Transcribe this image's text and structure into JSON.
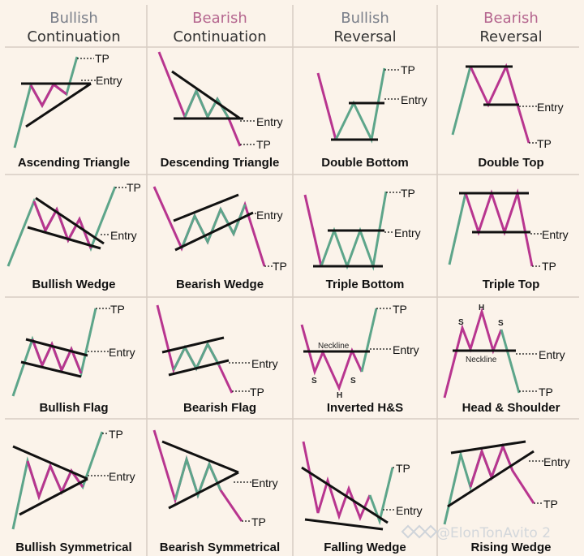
{
  "headers": [
    {
      "line1": "Bullish",
      "line2": "Continuation",
      "color": "#7a7f8a"
    },
    {
      "line1": "Bearish",
      "line2": "Continuation",
      "color": "#b5668f"
    },
    {
      "line1": "Bullish",
      "line2": "Reversal",
      "color": "#7a7f8a"
    },
    {
      "line1": "Bearish",
      "line2": "Reversal",
      "color": "#b5668f"
    }
  ],
  "labels": {
    "tp": "TP",
    "entry": "Entry",
    "neckline": "Neckline",
    "s": "S",
    "h": "H"
  },
  "colors": {
    "green": "#5da58a",
    "pink": "#b8358f",
    "black": "#111111",
    "grid": "#d8cdc3",
    "bg": "#fbf3ea"
  },
  "patterns": [
    {
      "name": "Ascending Triangle"
    },
    {
      "name": "Descending Triangle"
    },
    {
      "name": "Double Bottom"
    },
    {
      "name": "Double Top"
    },
    {
      "name": "Bullish Wedge"
    },
    {
      "name": "Bearish Wedge"
    },
    {
      "name": "Triple Bottom"
    },
    {
      "name": "Triple Top"
    },
    {
      "name": "Bullish Flag"
    },
    {
      "name": "Bearish Flag"
    },
    {
      "name": "Inverted H&S"
    },
    {
      "name": "Head & Shoulder"
    },
    {
      "name": "Bullish Symmetrical"
    },
    {
      "name": "Bearish Symmetrical"
    },
    {
      "name": "Falling Wedge"
    },
    {
      "name": "Rising Wedge"
    }
  ],
  "watermark": "@ElonTonAvito 2"
}
